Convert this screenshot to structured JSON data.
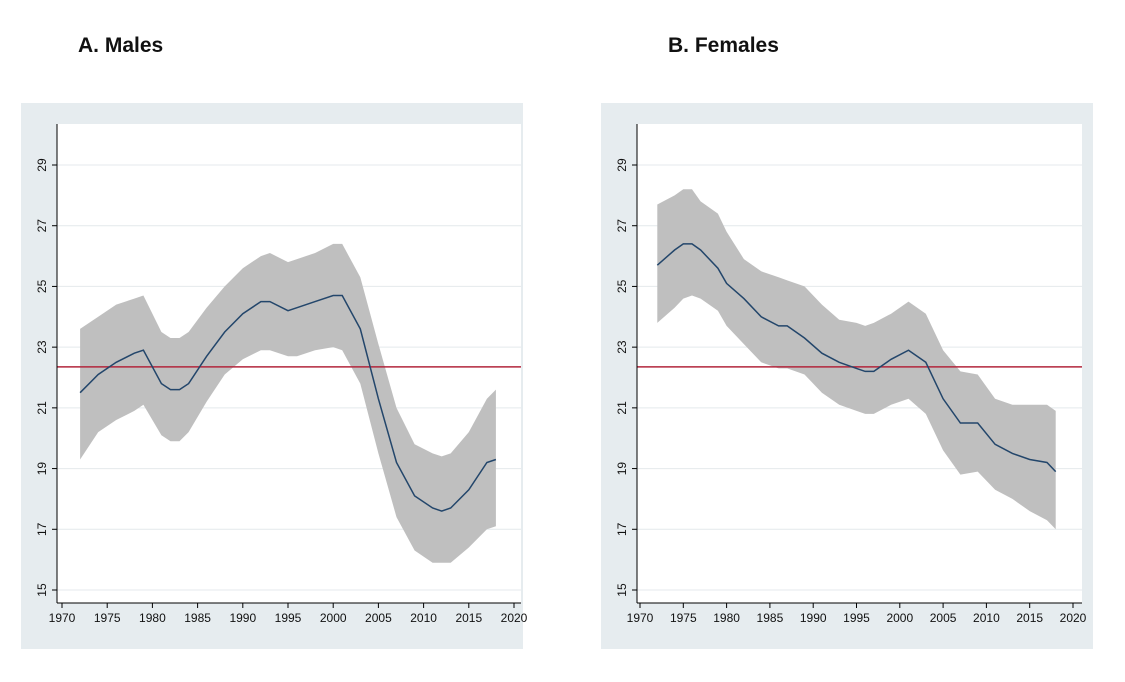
{
  "chart_data": [
    {
      "type": "line",
      "title": "A. Males",
      "xlabel": "",
      "ylabel": "",
      "xlim": [
        1970,
        2020
      ],
      "ylim": [
        15,
        30
      ],
      "xticks": [
        1970,
        1975,
        1980,
        1985,
        1990,
        1995,
        2000,
        2005,
        2010,
        2015,
        2020
      ],
      "yticks": [
        15,
        17,
        19,
        21,
        23,
        25,
        27,
        29
      ],
      "grid": true,
      "reference_line": 22.35,
      "x": [
        1972,
        1974,
        1976,
        1978,
        1979,
        1981,
        1982,
        1983,
        1984,
        1986,
        1988,
        1990,
        1992,
        1993,
        1995,
        1996,
        1998,
        2000,
        2001,
        2003,
        2005,
        2007,
        2009,
        2011,
        2012,
        2013,
        2015,
        2017,
        2018
      ],
      "y": [
        21.5,
        22.1,
        22.5,
        22.8,
        22.9,
        21.8,
        21.6,
        21.6,
        21.8,
        22.7,
        23.5,
        24.1,
        24.5,
        24.5,
        24.2,
        24.3,
        24.5,
        24.7,
        24.7,
        23.6,
        21.3,
        19.2,
        18.1,
        17.7,
        17.6,
        17.7,
        18.3,
        19.2,
        19.3
      ],
      "lower": [
        19.3,
        20.2,
        20.6,
        20.9,
        21.1,
        20.1,
        19.9,
        19.9,
        20.2,
        21.2,
        22.1,
        22.6,
        22.9,
        22.9,
        22.7,
        22.7,
        22.9,
        23.0,
        22.9,
        21.8,
        19.5,
        17.4,
        16.3,
        15.9,
        15.9,
        15.9,
        16.4,
        17.0,
        17.1
      ],
      "upper": [
        23.6,
        24.0,
        24.4,
        24.6,
        24.7,
        23.5,
        23.3,
        23.3,
        23.5,
        24.3,
        25.0,
        25.6,
        26.0,
        26.1,
        25.8,
        25.9,
        26.1,
        26.4,
        26.4,
        25.3,
        23.1,
        21.0,
        19.8,
        19.5,
        19.4,
        19.5,
        20.2,
        21.3,
        21.6
      ]
    },
    {
      "type": "line",
      "title": "B. Females",
      "xlabel": "",
      "ylabel": "",
      "xlim": [
        1970,
        2020
      ],
      "ylim": [
        15,
        30
      ],
      "xticks": [
        1970,
        1975,
        1980,
        1985,
        1990,
        1995,
        2000,
        2005,
        2010,
        2015,
        2020
      ],
      "yticks": [
        15,
        17,
        19,
        21,
        23,
        25,
        27,
        29
      ],
      "grid": true,
      "reference_line": 22.35,
      "x": [
        1972,
        1974,
        1975,
        1976,
        1977,
        1979,
        1980,
        1982,
        1984,
        1986,
        1987,
        1989,
        1991,
        1993,
        1995,
        1996,
        1997,
        1999,
        2001,
        2003,
        2005,
        2007,
        2009,
        2011,
        2013,
        2015,
        2017,
        2018
      ],
      "y": [
        25.7,
        26.2,
        26.4,
        26.4,
        26.2,
        25.6,
        25.1,
        24.6,
        24.0,
        23.7,
        23.7,
        23.3,
        22.8,
        22.5,
        22.3,
        22.2,
        22.2,
        22.6,
        22.9,
        22.5,
        21.3,
        20.5,
        20.5,
        19.8,
        19.5,
        19.3,
        19.2,
        18.9
      ],
      "lower": [
        23.8,
        24.3,
        24.6,
        24.7,
        24.6,
        24.2,
        23.7,
        23.1,
        22.5,
        22.3,
        22.3,
        22.1,
        21.5,
        21.1,
        20.9,
        20.8,
        20.8,
        21.1,
        21.3,
        20.8,
        19.6,
        18.8,
        18.9,
        18.3,
        18.0,
        17.6,
        17.3,
        17.0
      ],
      "upper": [
        27.7,
        28.0,
        28.2,
        28.2,
        27.8,
        27.4,
        26.8,
        25.9,
        25.5,
        25.3,
        25.2,
        25.0,
        24.4,
        23.9,
        23.8,
        23.7,
        23.8,
        24.1,
        24.5,
        24.1,
        22.9,
        22.2,
        22.1,
        21.3,
        21.1,
        21.1,
        21.1,
        20.9
      ]
    }
  ]
}
